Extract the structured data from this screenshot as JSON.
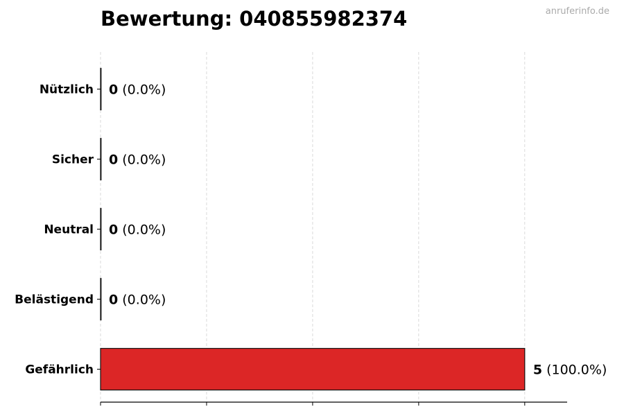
{
  "chart_data": {
    "type": "bar",
    "orientation": "horizontal",
    "title": "Bewertung: 040855982374",
    "categories": [
      "Nützlich",
      "Sicher",
      "Neutral",
      "Belästigend",
      "Gefährlich"
    ],
    "values": [
      0,
      0,
      0,
      0,
      5
    ],
    "value_labels": [
      "0",
      "0",
      "0",
      "0",
      "5"
    ],
    "percent_labels": [
      "(0.0%)",
      "(0.0%)",
      "(0.0%)",
      "(0.0%)",
      "(100.0%)"
    ],
    "bar_color": "#dc2626",
    "xlim": [
      0,
      5.5
    ],
    "xticks": [
      0,
      1.25,
      2.5,
      3.75,
      5
    ],
    "xtick_labels_visible": false,
    "grid": "vertical dashed",
    "xlabel": "",
    "ylabel": ""
  },
  "watermark": "anruferinfo.de"
}
